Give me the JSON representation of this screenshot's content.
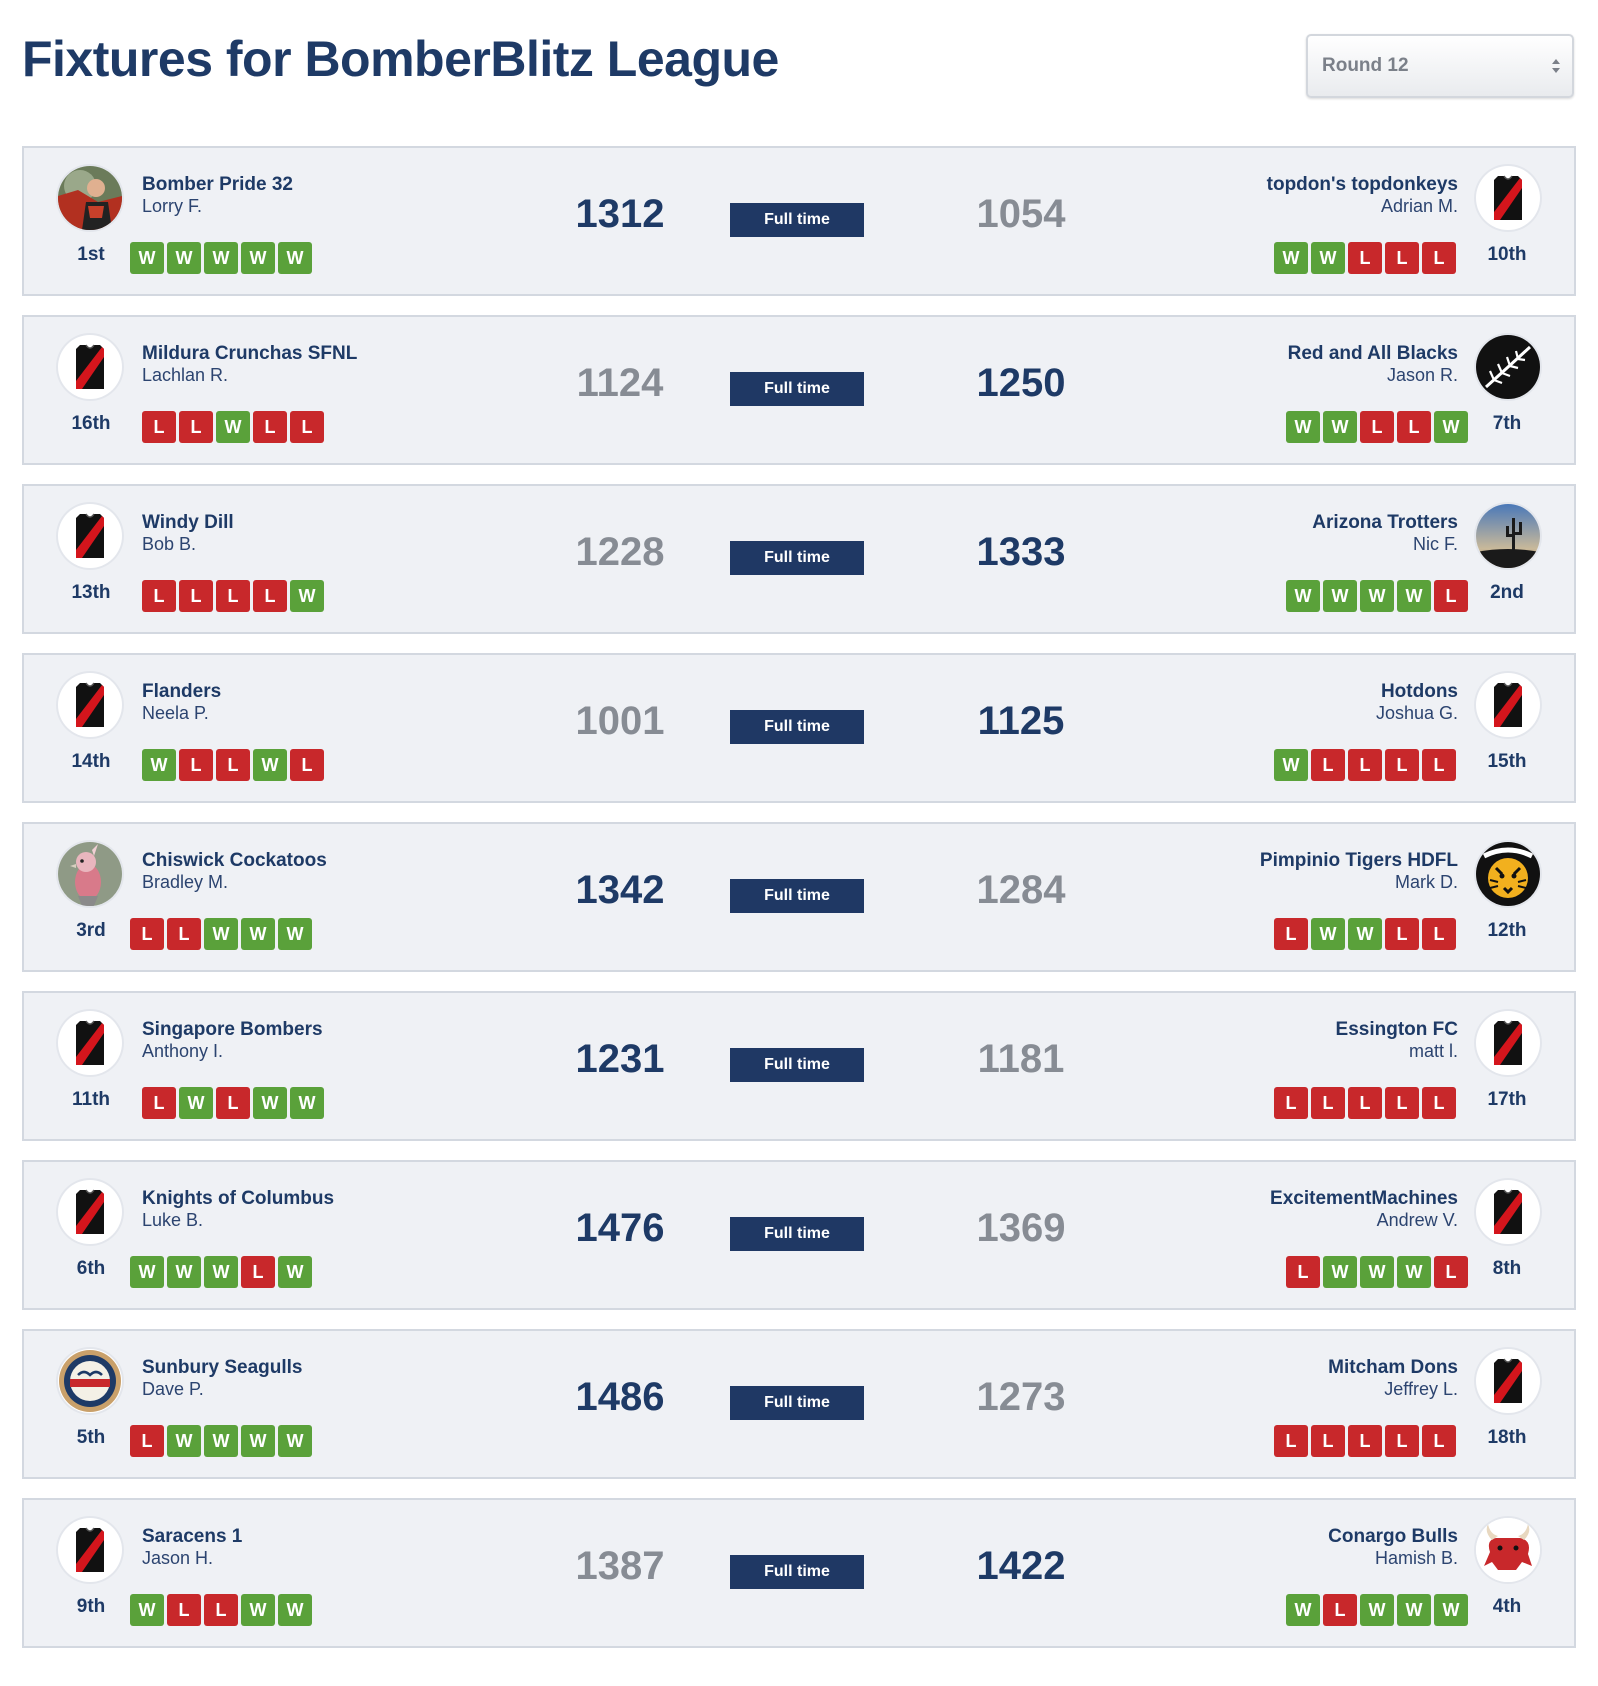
{
  "page": {
    "title": "Fixtures for BomberBlitz League",
    "round_select": {
      "value": "Round 12",
      "options": [
        "Round 12"
      ]
    }
  },
  "colors": {
    "primary": "#1f3864",
    "win_badge": "#5aa13a",
    "loss_badge": "#c8282b",
    "losing_score": "#878c94",
    "card_bg": "#eff1f5"
  },
  "fixtures": [
    {
      "status": "Full time",
      "home": {
        "team": "Bomber Pride 32",
        "coach": "Lorry F.",
        "rank": "1st",
        "score": "1312",
        "form": [
          "W",
          "W",
          "W",
          "W",
          "W"
        ],
        "avatar": "photo-avatar-icon"
      },
      "away": {
        "team": "topdon's topdonkeys",
        "coach": "Adrian M.",
        "rank": "10th",
        "score": "1054",
        "form": [
          "W",
          "W",
          "L",
          "L",
          "L"
        ],
        "avatar": "guernsey-icon"
      },
      "winner": "home"
    },
    {
      "status": "Full time",
      "home": {
        "team": "Mildura Crunchas SFNL",
        "coach": "Lachlan R.",
        "rank": "16th",
        "score": "1124",
        "form": [
          "L",
          "L",
          "W",
          "L",
          "L"
        ],
        "avatar": "guernsey-icon"
      },
      "away": {
        "team": "Red and All Blacks",
        "coach": "Jason R.",
        "rank": "7th",
        "score": "1250",
        "form": [
          "W",
          "W",
          "L",
          "L",
          "W"
        ],
        "avatar": "silver-fern-icon"
      },
      "winner": "away"
    },
    {
      "status": "Full time",
      "home": {
        "team": "Windy Dill",
        "coach": "Bob B.",
        "rank": "13th",
        "score": "1228",
        "form": [
          "L",
          "L",
          "L",
          "L",
          "W"
        ],
        "avatar": "guernsey-icon"
      },
      "away": {
        "team": "Arizona Trotters",
        "coach": "Nic F.",
        "rank": "2nd",
        "score": "1333",
        "form": [
          "W",
          "W",
          "W",
          "W",
          "L"
        ],
        "avatar": "desert-cactus-icon"
      },
      "winner": "away"
    },
    {
      "status": "Full time",
      "home": {
        "team": "Flanders",
        "coach": "Neela P.",
        "rank": "14th",
        "score": "1001",
        "form": [
          "W",
          "L",
          "L",
          "W",
          "L"
        ],
        "avatar": "guernsey-icon"
      },
      "away": {
        "team": "Hotdons",
        "coach": "Joshua G.",
        "rank": "15th",
        "score": "1125",
        "form": [
          "W",
          "L",
          "L",
          "L",
          "L"
        ],
        "avatar": "guernsey-icon"
      },
      "winner": "away"
    },
    {
      "status": "Full time",
      "home": {
        "team": "Chiswick Cockatoos",
        "coach": "Bradley M.",
        "rank": "3rd",
        "score": "1342",
        "form": [
          "L",
          "L",
          "W",
          "W",
          "W"
        ],
        "avatar": "cockatoo-icon"
      },
      "away": {
        "team": "Pimpinio Tigers HDFL",
        "coach": "Mark D.",
        "rank": "12th",
        "score": "1284",
        "form": [
          "L",
          "W",
          "W",
          "L",
          "L"
        ],
        "avatar": "tiger-logo-icon"
      },
      "winner": "home"
    },
    {
      "status": "Full time",
      "home": {
        "team": "Singapore Bombers",
        "coach": "Anthony I.",
        "rank": "11th",
        "score": "1231",
        "form": [
          "L",
          "W",
          "L",
          "W",
          "W"
        ],
        "avatar": "guernsey-icon"
      },
      "away": {
        "team": "Essington FC",
        "coach": "matt l.",
        "rank": "17th",
        "score": "1181",
        "form": [
          "L",
          "L",
          "L",
          "L",
          "L"
        ],
        "avatar": "guernsey-icon"
      },
      "winner": "home"
    },
    {
      "status": "Full time",
      "home": {
        "team": "Knights of Columbus",
        "coach": "Luke B.",
        "rank": "6th",
        "score": "1476",
        "form": [
          "W",
          "W",
          "W",
          "L",
          "W"
        ],
        "avatar": "guernsey-icon"
      },
      "away": {
        "team": "ExcitementMachines",
        "coach": "Andrew V.",
        "rank": "8th",
        "score": "1369",
        "form": [
          "L",
          "W",
          "W",
          "W",
          "L"
        ],
        "avatar": "guernsey-icon"
      },
      "winner": "home"
    },
    {
      "status": "Full time",
      "home": {
        "team": "Sunbury Seagulls",
        "coach": "Dave P.",
        "rank": "5th",
        "score": "1486",
        "form": [
          "L",
          "W",
          "W",
          "W",
          "W"
        ],
        "avatar": "seagulls-logo-icon"
      },
      "away": {
        "team": "Mitcham Dons",
        "coach": "Jeffrey L.",
        "rank": "18th",
        "score": "1273",
        "form": [
          "L",
          "L",
          "L",
          "L",
          "L"
        ],
        "avatar": "guernsey-icon"
      },
      "winner": "home"
    },
    {
      "status": "Full time",
      "home": {
        "team": "Saracens 1",
        "coach": "Jason H.",
        "rank": "9th",
        "score": "1387",
        "form": [
          "W",
          "L",
          "L",
          "W",
          "W"
        ],
        "avatar": "guernsey-icon"
      },
      "away": {
        "team": "Conargo Bulls",
        "coach": "Hamish B.",
        "rank": "4th",
        "score": "1422",
        "form": [
          "W",
          "L",
          "W",
          "W",
          "W"
        ],
        "avatar": "bull-icon"
      },
      "winner": "away"
    }
  ]
}
